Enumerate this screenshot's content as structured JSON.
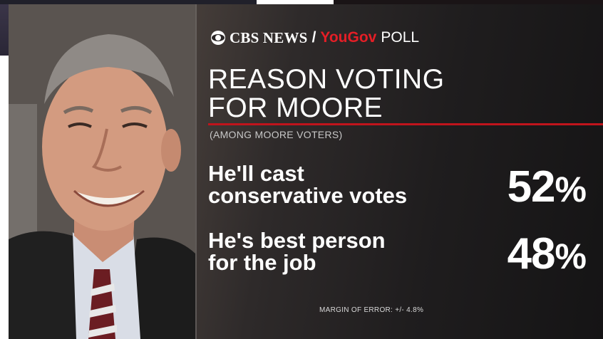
{
  "brand": {
    "network": "CBS NEWS",
    "separator": "/",
    "partner": "YouGov",
    "poll": "POLL"
  },
  "colors": {
    "accent_red": "#c0141c",
    "yougov_red": "#e41e26",
    "text": "#ffffff"
  },
  "chart_data": {
    "type": "table",
    "title": "REASON VOTING FOR MOORE",
    "subtitle": "(AMONG MOORE VOTERS)",
    "categories": [
      "He'll cast conservative votes",
      "He's best person for the job"
    ],
    "values": [
      52,
      48
    ],
    "unit": "%",
    "note": "MARGIN OF ERROR: +/- 4.8%"
  },
  "rows": [
    {
      "label_line1": "He'll cast",
      "label_line2": "conservative votes",
      "value": "52",
      "unit": "%"
    },
    {
      "label_line1": "He's best person",
      "label_line2": "for the job",
      "value": "48",
      "unit": "%"
    }
  ],
  "title_line1": "REASON VOTING",
  "title_line2": "FOR MOORE"
}
